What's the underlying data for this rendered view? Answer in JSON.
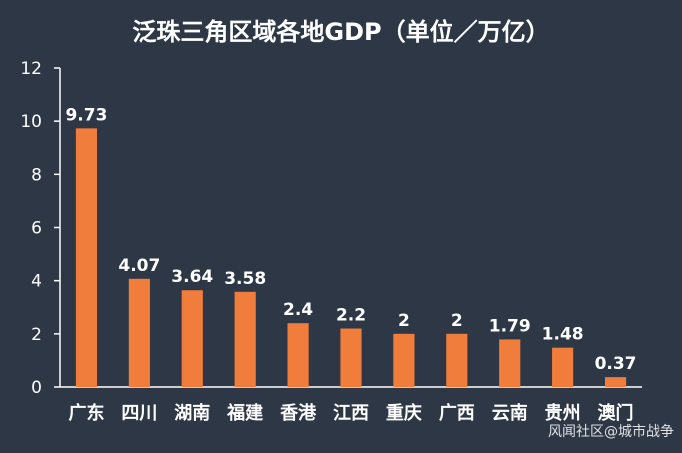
{
  "chart_data": {
    "type": "bar",
    "title": "泛珠三角区域各地GDP（单位／万亿）",
    "categories": [
      "广东",
      "四川",
      "湖南",
      "福建",
      "香港",
      "江西",
      "重庆",
      "广西",
      "云南",
      "贵州",
      "澳门"
    ],
    "values": [
      9.73,
      4.07,
      3.64,
      3.58,
      2.4,
      2.2,
      2,
      2,
      1.79,
      1.48,
      0.37
    ],
    "data_labels": [
      "9.73",
      "4.07",
      "3.64",
      "3.58",
      "2.4",
      "2.2",
      "2",
      "2",
      "1.79",
      "1.48",
      "0.37"
    ],
    "ylim": [
      0,
      12
    ],
    "yticks": [
      "0",
      "2",
      "4",
      "6",
      "8",
      "10",
      "12"
    ],
    "grid": false,
    "bar_color": "#f07d3b",
    "axis_color": "#ffffff",
    "background_color": "#2e3745"
  },
  "watermark": "风闻社区@城市战争"
}
